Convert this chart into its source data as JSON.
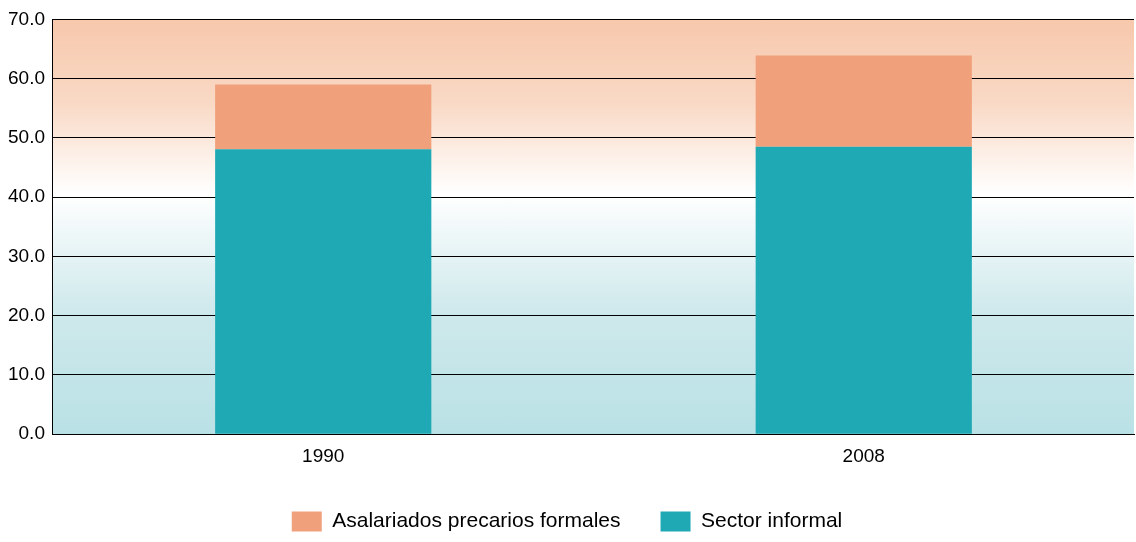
{
  "chart_data": {
    "type": "bar",
    "stacked": true,
    "categories": [
      "1990",
      "2008"
    ],
    "series": [
      {
        "name": "Sector informal",
        "color": "#1fa9b5",
        "values": [
          48.1,
          48.5
        ]
      },
      {
        "name": "Asalariados precarios formales",
        "color": "#f0a07a",
        "values": [
          10.9,
          15.4
        ]
      }
    ],
    "ylim": [
      0,
      70
    ],
    "yticks": [
      {
        "value": 0,
        "label": "0.0"
      },
      {
        "value": 10,
        "label": "10.0"
      },
      {
        "value": 20,
        "label": "20.0"
      },
      {
        "value": 30,
        "label": "30.0"
      },
      {
        "value": 40,
        "label": "40.0"
      },
      {
        "value": 50,
        "label": "50.0"
      },
      {
        "value": 60,
        "label": "60.0"
      },
      {
        "value": 70,
        "label": "70.0"
      }
    ],
    "grid": "y",
    "legend": "bottom"
  }
}
